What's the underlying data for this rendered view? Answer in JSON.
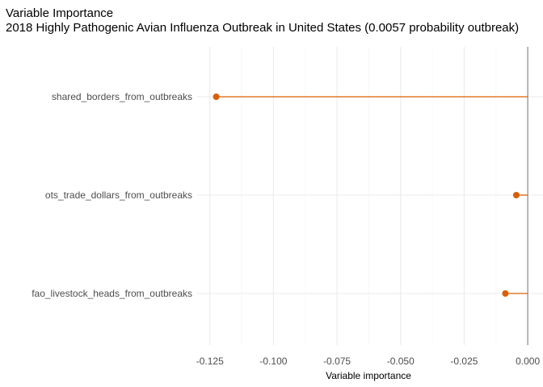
{
  "chart_data": {
    "type": "lollipop",
    "title": "Variable Importance",
    "subtitle": "2018 Highly Pathogenic Avian Influenza Outbreak in United States (0.0057 probability outbreak)",
    "xlabel": "Variable importance",
    "ylabel": "",
    "categories": [
      "shared_borders_from_outbreaks",
      "ots_trade_dollars_from_outbreaks",
      "fao_livestock_heads_from_outbreaks"
    ],
    "values": [
      -0.1225,
      -0.0045,
      -0.0088
    ],
    "xlim": [
      -0.13,
      0.006
    ],
    "x_ticks": [
      -0.125,
      -0.1,
      -0.075,
      -0.05,
      -0.025,
      0.0
    ],
    "x_tick_labels": [
      "-0.125",
      "-0.100",
      "-0.075",
      "-0.050",
      "-0.025",
      "0.000"
    ],
    "reference_line": 0.0,
    "grid": true,
    "legend": "none",
    "colors": {
      "point": "#d95f02",
      "segment": "#d95f02",
      "reference": "#7f7f7f",
      "grid_major": "#ebebeb",
      "grid_minor": "#f5f5f5"
    }
  }
}
